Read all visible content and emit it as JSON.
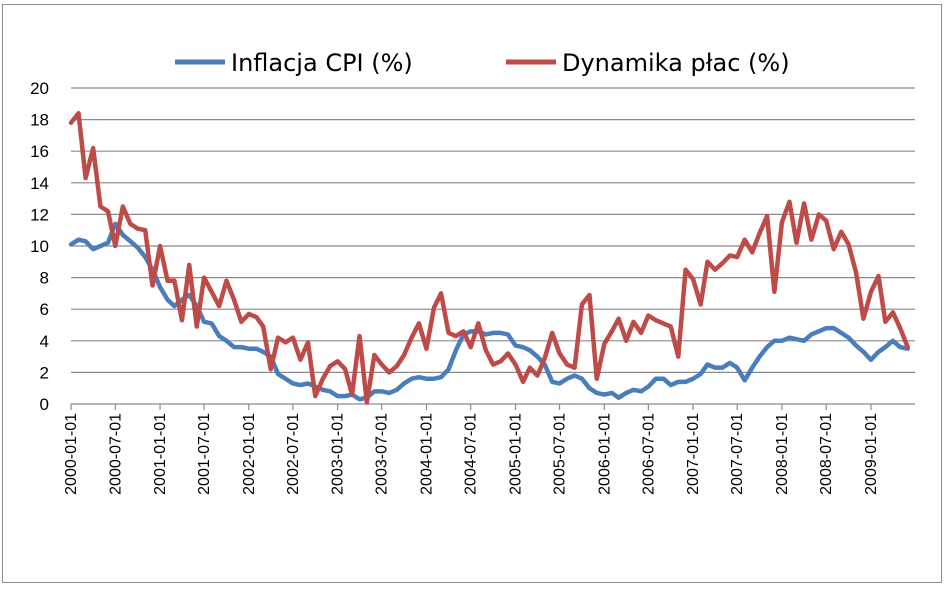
{
  "chart_data": {
    "type": "line",
    "title": "",
    "xlabel": "",
    "ylabel": "",
    "ylim": [
      0,
      20
    ],
    "yticks": [
      "0",
      "2",
      "4",
      "6",
      "8",
      "10",
      "12",
      "14",
      "16",
      "18",
      "20"
    ],
    "x_tick_labels": [
      "2000-01-01",
      "2000-07-01",
      "2001-01-01",
      "2001-07-01",
      "2002-01-01",
      "2002-07-01",
      "2003-01-01",
      "2003-07-01",
      "2004-01-01",
      "2004-07-01",
      "2005-01-01",
      "2005-07-01",
      "2006-01-01",
      "2006-07-01",
      "2007-01-01",
      "2007-07-01",
      "2008-01-01",
      "2008-07-01",
      "2009-01-01"
    ],
    "x_range": [
      "2000-01-01",
      "2009-06-01"
    ],
    "grid": "horizontal",
    "legend_position": "top-center",
    "series": [
      {
        "name": "Inflacja CPI (%)",
        "color": "#4a7ebb",
        "points": [
          [
            "2000-01-01",
            10.1
          ],
          [
            "2000-02-01",
            10.4
          ],
          [
            "2000-03-01",
            10.3
          ],
          [
            "2000-04-01",
            9.8
          ],
          [
            "2000-05-01",
            10.0
          ],
          [
            "2000-06-01",
            10.2
          ],
          [
            "2000-07-01",
            11.4
          ],
          [
            "2000-08-01",
            10.7
          ],
          [
            "2000-09-01",
            10.3
          ],
          [
            "2000-10-01",
            9.9
          ],
          [
            "2000-11-01",
            9.3
          ],
          [
            "2000-12-01",
            8.5
          ],
          [
            "2001-01-01",
            7.4
          ],
          [
            "2001-02-01",
            6.6
          ],
          [
            "2001-03-01",
            6.2
          ],
          [
            "2001-04-01",
            6.6
          ],
          [
            "2001-05-01",
            6.9
          ],
          [
            "2001-06-01",
            6.2
          ],
          [
            "2001-07-01",
            5.2
          ],
          [
            "2001-08-01",
            5.1
          ],
          [
            "2001-09-01",
            4.3
          ],
          [
            "2001-10-01",
            4.0
          ],
          [
            "2001-11-01",
            3.6
          ],
          [
            "2001-12-01",
            3.6
          ],
          [
            "2002-01-01",
            3.5
          ],
          [
            "2002-02-01",
            3.5
          ],
          [
            "2002-03-01",
            3.3
          ],
          [
            "2002-04-01",
            3.0
          ],
          [
            "2002-05-01",
            1.9
          ],
          [
            "2002-06-01",
            1.6
          ],
          [
            "2002-07-01",
            1.3
          ],
          [
            "2002-08-01",
            1.2
          ],
          [
            "2002-09-01",
            1.3
          ],
          [
            "2002-10-01",
            1.1
          ],
          [
            "2002-11-01",
            0.9
          ],
          [
            "2002-12-01",
            0.8
          ],
          [
            "2003-01-01",
            0.5
          ],
          [
            "2003-02-01",
            0.5
          ],
          [
            "2003-03-01",
            0.6
          ],
          [
            "2003-04-01",
            0.3
          ],
          [
            "2003-05-01",
            0.4
          ],
          [
            "2003-06-01",
            0.8
          ],
          [
            "2003-07-01",
            0.8
          ],
          [
            "2003-08-01",
            0.7
          ],
          [
            "2003-09-01",
            0.9
          ],
          [
            "2003-10-01",
            1.3
          ],
          [
            "2003-11-01",
            1.6
          ],
          [
            "2003-12-01",
            1.7
          ],
          [
            "2004-01-01",
            1.6
          ],
          [
            "2004-02-01",
            1.6
          ],
          [
            "2004-03-01",
            1.7
          ],
          [
            "2004-04-01",
            2.2
          ],
          [
            "2004-05-01",
            3.4
          ],
          [
            "2004-06-01",
            4.4
          ],
          [
            "2004-07-01",
            4.6
          ],
          [
            "2004-08-01",
            4.6
          ],
          [
            "2004-09-01",
            4.4
          ],
          [
            "2004-10-01",
            4.5
          ],
          [
            "2004-11-01",
            4.5
          ],
          [
            "2004-12-01",
            4.4
          ],
          [
            "2005-01-01",
            3.7
          ],
          [
            "2005-02-01",
            3.6
          ],
          [
            "2005-03-01",
            3.4
          ],
          [
            "2005-04-01",
            3.0
          ],
          [
            "2005-05-01",
            2.5
          ],
          [
            "2005-06-01",
            1.4
          ],
          [
            "2005-07-01",
            1.3
          ],
          [
            "2005-08-01",
            1.6
          ],
          [
            "2005-09-01",
            1.8
          ],
          [
            "2005-10-01",
            1.6
          ],
          [
            "2005-11-01",
            1.0
          ],
          [
            "2005-12-01",
            0.7
          ],
          [
            "2006-01-01",
            0.6
          ],
          [
            "2006-02-01",
            0.7
          ],
          [
            "2006-03-01",
            0.4
          ],
          [
            "2006-04-01",
            0.7
          ],
          [
            "2006-05-01",
            0.9
          ],
          [
            "2006-06-01",
            0.8
          ],
          [
            "2006-07-01",
            1.1
          ],
          [
            "2006-08-01",
            1.6
          ],
          [
            "2006-09-01",
            1.6
          ],
          [
            "2006-10-01",
            1.2
          ],
          [
            "2006-11-01",
            1.4
          ],
          [
            "2006-12-01",
            1.4
          ],
          [
            "2007-01-01",
            1.6
          ],
          [
            "2007-02-01",
            1.9
          ],
          [
            "2007-03-01",
            2.5
          ],
          [
            "2007-04-01",
            2.3
          ],
          [
            "2007-05-01",
            2.3
          ],
          [
            "2007-06-01",
            2.6
          ],
          [
            "2007-07-01",
            2.3
          ],
          [
            "2007-08-01",
            1.5
          ],
          [
            "2007-09-01",
            2.3
          ],
          [
            "2007-10-01",
            3.0
          ],
          [
            "2007-11-01",
            3.6
          ],
          [
            "2007-12-01",
            4.0
          ],
          [
            "2008-01-01",
            4.0
          ],
          [
            "2008-02-01",
            4.2
          ],
          [
            "2008-03-01",
            4.1
          ],
          [
            "2008-04-01",
            4.0
          ],
          [
            "2008-05-01",
            4.4
          ],
          [
            "2008-06-01",
            4.6
          ],
          [
            "2008-07-01",
            4.8
          ],
          [
            "2008-08-01",
            4.8
          ],
          [
            "2008-09-01",
            4.5
          ],
          [
            "2008-10-01",
            4.2
          ],
          [
            "2008-11-01",
            3.7
          ],
          [
            "2008-12-01",
            3.3
          ],
          [
            "2009-01-01",
            2.8
          ],
          [
            "2009-02-01",
            3.3
          ],
          [
            "2009-03-01",
            3.6
          ],
          [
            "2009-04-01",
            4.0
          ],
          [
            "2009-05-01",
            3.6
          ],
          [
            "2009-06-01",
            3.5
          ]
        ]
      },
      {
        "name": "Dynamika płac (%)",
        "color": "#be4b48",
        "points": [
          [
            "2000-01-01",
            17.8
          ],
          [
            "2000-02-01",
            18.4
          ],
          [
            "2000-03-01",
            14.3
          ],
          [
            "2000-04-01",
            16.2
          ],
          [
            "2000-05-01",
            12.5
          ],
          [
            "2000-06-01",
            12.2
          ],
          [
            "2000-07-01",
            10.0
          ],
          [
            "2000-08-01",
            12.5
          ],
          [
            "2000-09-01",
            11.4
          ],
          [
            "2000-10-01",
            11.1
          ],
          [
            "2000-11-01",
            11.0
          ],
          [
            "2000-12-01",
            7.5
          ],
          [
            "2001-01-01",
            10.0
          ],
          [
            "2001-02-01",
            7.8
          ],
          [
            "2001-03-01",
            7.8
          ],
          [
            "2001-04-01",
            5.3
          ],
          [
            "2001-05-01",
            8.8
          ],
          [
            "2001-06-01",
            4.9
          ],
          [
            "2001-07-01",
            8.0
          ],
          [
            "2001-08-01",
            7.1
          ],
          [
            "2001-09-01",
            6.2
          ],
          [
            "2001-10-01",
            7.8
          ],
          [
            "2001-11-01",
            6.6
          ],
          [
            "2001-12-01",
            5.2
          ],
          [
            "2002-01-01",
            5.7
          ],
          [
            "2002-02-01",
            5.5
          ],
          [
            "2002-03-01",
            4.9
          ],
          [
            "2002-04-01",
            2.2
          ],
          [
            "2002-05-01",
            4.2
          ],
          [
            "2002-06-01",
            3.9
          ],
          [
            "2002-07-01",
            4.2
          ],
          [
            "2002-08-01",
            2.8
          ],
          [
            "2002-09-01",
            3.9
          ],
          [
            "2002-10-01",
            0.5
          ],
          [
            "2002-11-01",
            1.6
          ],
          [
            "2002-12-01",
            2.4
          ],
          [
            "2003-01-01",
            2.7
          ],
          [
            "2003-02-01",
            2.2
          ],
          [
            "2003-03-01",
            0.6
          ],
          [
            "2003-04-01",
            4.3
          ],
          [
            "2003-05-01",
            0.1
          ],
          [
            "2003-06-01",
            3.1
          ],
          [
            "2003-07-01",
            2.5
          ],
          [
            "2003-08-01",
            2.0
          ],
          [
            "2003-09-01",
            2.4
          ],
          [
            "2003-10-01",
            3.1
          ],
          [
            "2003-11-01",
            4.2
          ],
          [
            "2003-12-01",
            5.1
          ],
          [
            "2004-01-01",
            3.5
          ],
          [
            "2004-02-01",
            6.1
          ],
          [
            "2004-03-01",
            7.0
          ],
          [
            "2004-04-01",
            4.5
          ],
          [
            "2004-05-01",
            4.3
          ],
          [
            "2004-06-01",
            4.6
          ],
          [
            "2004-07-01",
            3.6
          ],
          [
            "2004-08-01",
            5.1
          ],
          [
            "2004-09-01",
            3.4
          ],
          [
            "2004-10-01",
            2.5
          ],
          [
            "2004-11-01",
            2.7
          ],
          [
            "2004-12-01",
            3.2
          ],
          [
            "2005-01-01",
            2.5
          ],
          [
            "2005-02-01",
            1.4
          ],
          [
            "2005-03-01",
            2.3
          ],
          [
            "2005-04-01",
            1.8
          ],
          [
            "2005-05-01",
            2.9
          ],
          [
            "2005-06-01",
            4.5
          ],
          [
            "2005-07-01",
            3.2
          ],
          [
            "2005-08-01",
            2.5
          ],
          [
            "2005-09-01",
            2.3
          ],
          [
            "2005-10-01",
            6.3
          ],
          [
            "2005-11-01",
            6.9
          ],
          [
            "2005-12-01",
            1.6
          ],
          [
            "2006-01-01",
            3.8
          ],
          [
            "2006-02-01",
            4.6
          ],
          [
            "2006-03-01",
            5.4
          ],
          [
            "2006-04-01",
            4.0
          ],
          [
            "2006-05-01",
            5.2
          ],
          [
            "2006-06-01",
            4.5
          ],
          [
            "2006-07-01",
            5.6
          ],
          [
            "2006-08-01",
            5.3
          ],
          [
            "2006-09-01",
            5.1
          ],
          [
            "2006-10-01",
            4.9
          ],
          [
            "2006-11-01",
            3.0
          ],
          [
            "2006-12-01",
            8.5
          ],
          [
            "2007-01-01",
            7.9
          ],
          [
            "2007-02-01",
            6.3
          ],
          [
            "2007-03-01",
            9.0
          ],
          [
            "2007-04-01",
            8.5
          ],
          [
            "2007-05-01",
            8.9
          ],
          [
            "2007-06-01",
            9.4
          ],
          [
            "2007-07-01",
            9.3
          ],
          [
            "2007-08-01",
            10.4
          ],
          [
            "2007-09-01",
            9.6
          ],
          [
            "2007-10-01",
            10.8
          ],
          [
            "2007-11-01",
            11.9
          ],
          [
            "2007-12-01",
            7.1
          ],
          [
            "2008-01-01",
            11.5
          ],
          [
            "2008-02-01",
            12.8
          ],
          [
            "2008-03-01",
            10.2
          ],
          [
            "2008-04-01",
            12.7
          ],
          [
            "2008-05-01",
            10.4
          ],
          [
            "2008-06-01",
            12.0
          ],
          [
            "2008-07-01",
            11.6
          ],
          [
            "2008-08-01",
            9.8
          ],
          [
            "2008-09-01",
            10.9
          ],
          [
            "2008-10-01",
            10.1
          ],
          [
            "2008-11-01",
            8.3
          ],
          [
            "2008-12-01",
            5.4
          ],
          [
            "2009-01-01",
            7.1
          ],
          [
            "2009-02-01",
            8.1
          ],
          [
            "2009-03-01",
            5.2
          ],
          [
            "2009-04-01",
            5.8
          ],
          [
            "2009-05-01",
            4.8
          ],
          [
            "2009-06-01",
            3.6
          ]
        ]
      }
    ]
  }
}
